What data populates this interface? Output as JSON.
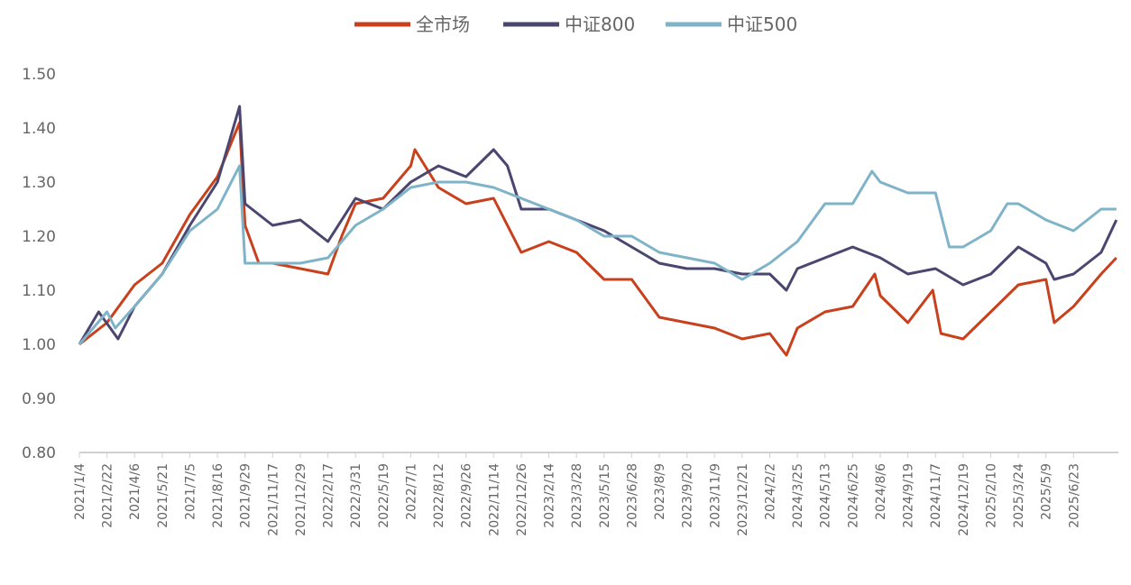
{
  "chart_data": {
    "type": "line",
    "title": "",
    "xlabel": "",
    "ylabel": "",
    "ylim": [
      0.8,
      1.5
    ],
    "yticks": [
      "0.80",
      "0.90",
      "1.00",
      "1.10",
      "1.20",
      "1.30",
      "1.40",
      "1.50"
    ],
    "legend_position": "top-center",
    "grid": false,
    "categories": [
      "2021/1/4",
      "2021/2/22",
      "2021/4/6",
      "2021/5/21",
      "2021/7/5",
      "2021/8/16",
      "2021/9/29",
      "2021/11/17",
      "2021/12/29",
      "2022/2/17",
      "2022/3/31",
      "2022/5/19",
      "2022/7/1",
      "2022/8/12",
      "2022/9/26",
      "2022/11/14",
      "2022/12/26",
      "2023/2/14",
      "2023/3/28",
      "2023/5/15",
      "2023/6/28",
      "2023/8/9",
      "2023/9/20",
      "2023/11/9",
      "2023/12/21",
      "2024/2/2",
      "2024/3/25",
      "2024/5/13",
      "2024/6/25",
      "2024/8/6",
      "2024/9/19",
      "2024/11/7",
      "2024/12/19",
      "2025/2/10",
      "2025/3/24",
      "2025/5/9",
      "2025/6/23"
    ],
    "series": [
      {
        "name": "全市场",
        "color": "#c8401c",
        "points": [
          [
            0,
            1.0
          ],
          [
            1,
            1.04
          ],
          [
            2,
            1.11
          ],
          [
            3,
            1.15
          ],
          [
            4,
            1.24
          ],
          [
            5,
            1.31
          ],
          [
            5.8,
            1.41
          ],
          [
            6,
            1.22
          ],
          [
            6.5,
            1.15
          ],
          [
            7,
            1.15
          ],
          [
            8,
            1.14
          ],
          [
            9,
            1.13
          ],
          [
            9.5,
            1.2
          ],
          [
            10,
            1.26
          ],
          [
            11,
            1.27
          ],
          [
            12,
            1.33
          ],
          [
            12.15,
            1.36
          ],
          [
            13,
            1.29
          ],
          [
            14,
            1.26
          ],
          [
            15,
            1.27
          ],
          [
            16,
            1.17
          ],
          [
            17,
            1.19
          ],
          [
            18,
            1.17
          ],
          [
            19,
            1.12
          ],
          [
            20,
            1.12
          ],
          [
            21,
            1.05
          ],
          [
            22,
            1.04
          ],
          [
            23,
            1.03
          ],
          [
            24,
            1.01
          ],
          [
            25,
            1.02
          ],
          [
            25.6,
            0.98
          ],
          [
            26,
            1.03
          ],
          [
            27,
            1.06
          ],
          [
            28,
            1.07
          ],
          [
            28.8,
            1.13
          ],
          [
            29,
            1.09
          ],
          [
            30,
            1.04
          ],
          [
            30.9,
            1.1
          ],
          [
            31.2,
            1.02
          ],
          [
            32,
            1.01
          ],
          [
            33,
            1.06
          ],
          [
            34,
            1.11
          ],
          [
            35,
            1.12
          ],
          [
            35.3,
            1.04
          ],
          [
            36,
            1.07
          ],
          [
            37,
            1.13
          ],
          [
            37.55,
            1.16
          ]
        ]
      },
      {
        "name": "中证800",
        "color": "#4a4670",
        "points": [
          [
            0,
            1.0
          ],
          [
            0.7,
            1.06
          ],
          [
            1.4,
            1.01
          ],
          [
            2,
            1.07
          ],
          [
            3,
            1.13
          ],
          [
            4,
            1.22
          ],
          [
            5,
            1.3
          ],
          [
            5.8,
            1.44
          ],
          [
            6,
            1.26
          ],
          [
            7,
            1.22
          ],
          [
            8,
            1.23
          ],
          [
            9,
            1.19
          ],
          [
            10,
            1.27
          ],
          [
            11,
            1.25
          ],
          [
            12,
            1.3
          ],
          [
            13,
            1.33
          ],
          [
            14,
            1.31
          ],
          [
            15,
            1.36
          ],
          [
            15.5,
            1.33
          ],
          [
            16,
            1.25
          ],
          [
            17,
            1.25
          ],
          [
            18,
            1.23
          ],
          [
            19,
            1.21
          ],
          [
            20,
            1.18
          ],
          [
            21,
            1.15
          ],
          [
            22,
            1.14
          ],
          [
            23,
            1.14
          ],
          [
            24,
            1.13
          ],
          [
            25,
            1.13
          ],
          [
            25.6,
            1.1
          ],
          [
            26,
            1.14
          ],
          [
            27,
            1.16
          ],
          [
            28,
            1.18
          ],
          [
            29,
            1.16
          ],
          [
            30,
            1.13
          ],
          [
            31,
            1.14
          ],
          [
            32,
            1.11
          ],
          [
            33,
            1.13
          ],
          [
            34,
            1.18
          ],
          [
            35,
            1.15
          ],
          [
            35.3,
            1.12
          ],
          [
            36,
            1.13
          ],
          [
            37,
            1.17
          ],
          [
            37.55,
            1.23
          ]
        ]
      },
      {
        "name": "中证500",
        "color": "#7fb3c8",
        "points": [
          [
            0,
            1.0
          ],
          [
            1,
            1.06
          ],
          [
            1.3,
            1.03
          ],
          [
            2,
            1.07
          ],
          [
            3,
            1.13
          ],
          [
            4,
            1.21
          ],
          [
            5,
            1.25
          ],
          [
            5.8,
            1.33
          ],
          [
            6,
            1.15
          ],
          [
            7,
            1.15
          ],
          [
            8,
            1.15
          ],
          [
            9,
            1.16
          ],
          [
            10,
            1.22
          ],
          [
            11,
            1.25
          ],
          [
            12,
            1.29
          ],
          [
            13,
            1.3
          ],
          [
            14,
            1.3
          ],
          [
            15,
            1.29
          ],
          [
            16,
            1.27
          ],
          [
            17,
            1.25
          ],
          [
            18,
            1.23
          ],
          [
            19,
            1.2
          ],
          [
            20,
            1.2
          ],
          [
            21,
            1.17
          ],
          [
            22,
            1.16
          ],
          [
            23,
            1.15
          ],
          [
            24,
            1.12
          ],
          [
            25,
            1.15
          ],
          [
            26,
            1.19
          ],
          [
            27,
            1.26
          ],
          [
            28,
            1.26
          ],
          [
            28.7,
            1.32
          ],
          [
            29,
            1.3
          ],
          [
            30,
            1.28
          ],
          [
            31,
            1.28
          ],
          [
            31.5,
            1.18
          ],
          [
            32,
            1.18
          ],
          [
            33,
            1.21
          ],
          [
            33.6,
            1.26
          ],
          [
            34,
            1.26
          ],
          [
            35,
            1.23
          ],
          [
            36,
            1.21
          ],
          [
            37,
            1.25
          ],
          [
            37.55,
            1.25
          ]
        ]
      }
    ]
  }
}
